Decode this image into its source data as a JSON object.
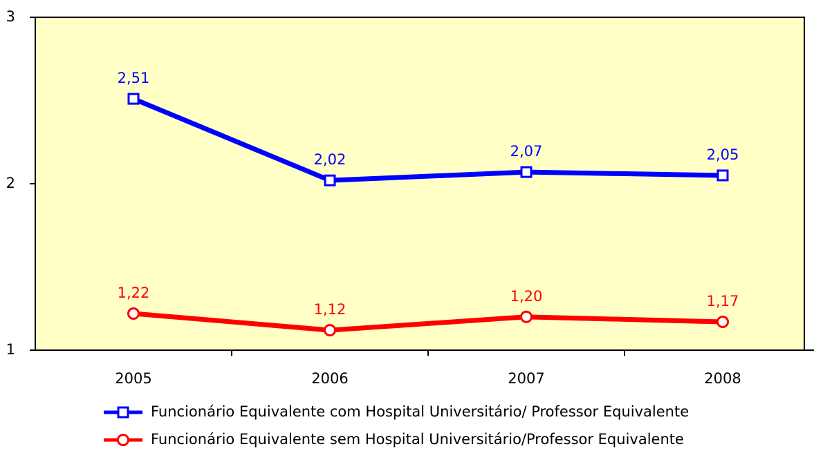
{
  "chart_data": {
    "type": "line",
    "categories": [
      "2005",
      "2006",
      "2007",
      "2008"
    ],
    "series": [
      {
        "name": "Funcionário Equivalente com Hospital Universitário/ Professor Equivalente",
        "color": "#0000ff",
        "marker": "square",
        "values": [
          2.51,
          2.02,
          2.07,
          2.05
        ],
        "value_labels": [
          "2,51",
          "2,02",
          "2,07",
          "2,05"
        ]
      },
      {
        "name": "Funcionário Equivalente sem Hospital Universitário/Professor Equivalente",
        "color": "#ff0000",
        "marker": "circle",
        "values": [
          1.22,
          1.12,
          1.2,
          1.17
        ],
        "value_labels": [
          "1,22",
          "1,12",
          "1,20",
          "1,17"
        ]
      }
    ],
    "ylim": [
      1,
      3
    ],
    "yticks": [
      1,
      2,
      3
    ],
    "grid": false,
    "legend": "bottom",
    "plot_background": "#ffffc6"
  }
}
